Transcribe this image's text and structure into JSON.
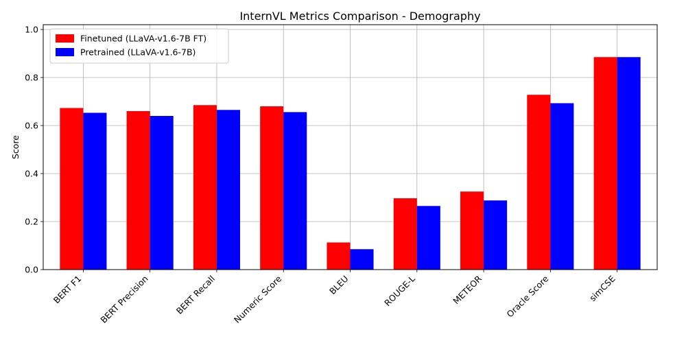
{
  "chart_data": {
    "type": "bar",
    "title": "InternVL Metrics Comparison - Demography",
    "xlabel": "",
    "ylabel": "Score",
    "ylim": [
      0,
      1.02
    ],
    "yticks": [
      "0.0",
      "0.2",
      "0.4",
      "0.6",
      "0.8",
      "1.0"
    ],
    "ytick_values": [
      0,
      0.2,
      0.4,
      0.6,
      0.8,
      1.0
    ],
    "grid": true,
    "legend_position": "top-left",
    "categories": [
      "BERT F1",
      "BERT Precision",
      "BERT Recall",
      "Numeric Score",
      "BLEU",
      "ROUGE-L",
      "METEOR",
      "Oracle Score",
      "simCSE"
    ],
    "series": [
      {
        "name": "Finetuned (LLaVA-v1.6-7B FT)",
        "color": "#ff0000",
        "values": [
          0.673,
          0.66,
          0.685,
          0.68,
          0.113,
          0.297,
          0.325,
          0.728,
          0.885
        ]
      },
      {
        "name": "Pretrained (LLaVA-v1.6-7B)",
        "color": "#0000ff",
        "values": [
          0.653,
          0.64,
          0.665,
          0.656,
          0.085,
          0.265,
          0.288,
          0.693,
          0.885
        ]
      }
    ]
  }
}
